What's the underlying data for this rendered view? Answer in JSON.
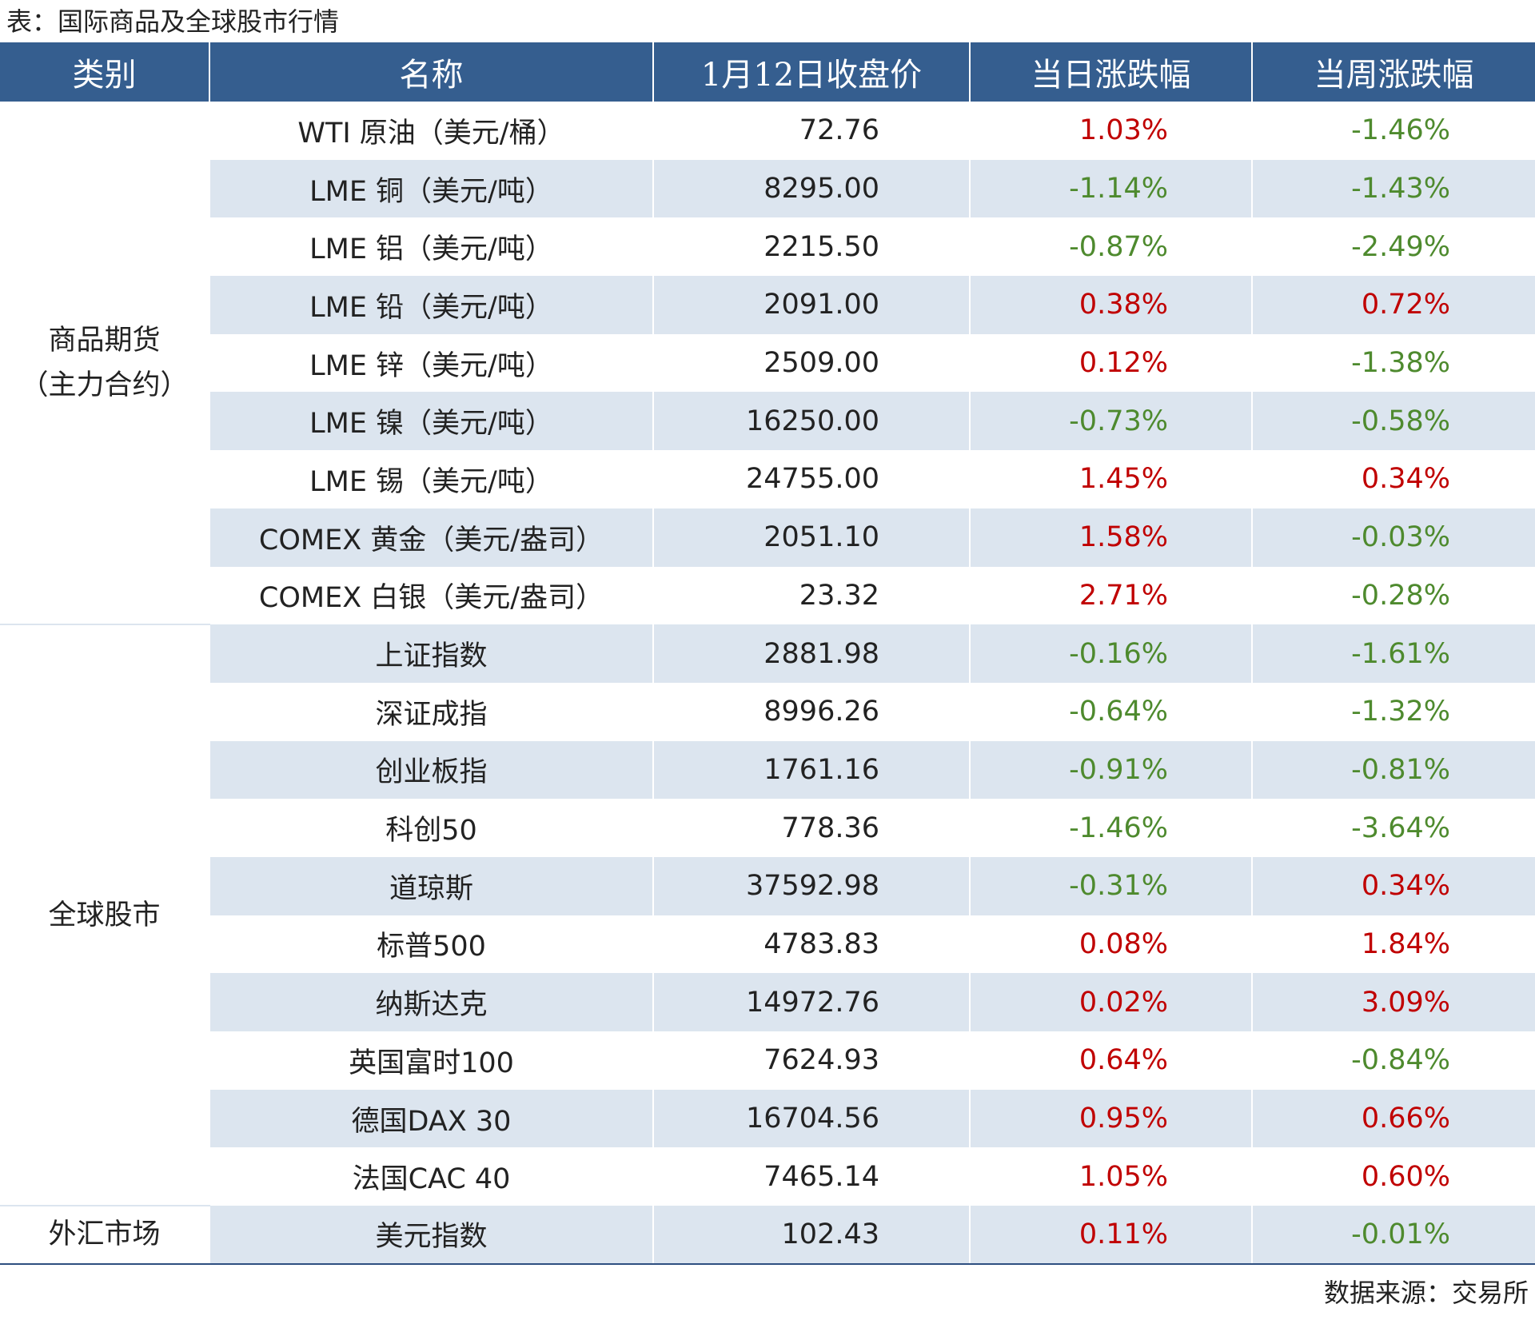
{
  "title": "表：国际商品及全球股市行情",
  "headers": [
    "类别",
    "名称",
    "1月12日收盘价",
    "当日涨跌幅",
    "当周涨跌幅"
  ],
  "categories": {
    "commodity_line1": "商品期货",
    "commodity_line2": "（主力合约）",
    "stocks": "全球股市",
    "fx": "外汇市场"
  },
  "rows": [
    {
      "name": "WTI 原油（美元/桶）",
      "price": "72.76",
      "day": "1.03%",
      "week": "-1.46%"
    },
    {
      "name": "LME 铜（美元/吨）",
      "price": "8295.00",
      "day": "-1.14%",
      "week": "-1.43%"
    },
    {
      "name": "LME 铝（美元/吨）",
      "price": "2215.50",
      "day": "-0.87%",
      "week": "-2.49%"
    },
    {
      "name": "LME 铅（美元/吨）",
      "price": "2091.00",
      "day": "0.38%",
      "week": "0.72%"
    },
    {
      "name": "LME 锌（美元/吨）",
      "price": "2509.00",
      "day": "0.12%",
      "week": "-1.38%"
    },
    {
      "name": "LME 镍（美元/吨）",
      "price": "16250.00",
      "day": "-0.73%",
      "week": "-0.58%"
    },
    {
      "name": "LME 锡（美元/吨）",
      "price": "24755.00",
      "day": "1.45%",
      "week": "0.34%"
    },
    {
      "name": "COMEX 黄金（美元/盎司）",
      "price": "2051.10",
      "day": "1.58%",
      "week": "-0.03%"
    },
    {
      "name": "COMEX 白银（美元/盎司）",
      "price": "23.32",
      "day": "2.71%",
      "week": "-0.28%"
    },
    {
      "name": "上证指数",
      "price": "2881.98",
      "day": "-0.16%",
      "week": "-1.61%"
    },
    {
      "name": "深证成指",
      "price": "8996.26",
      "day": "-0.64%",
      "week": "-1.32%"
    },
    {
      "name": "创业板指",
      "price": "1761.16",
      "day": "-0.91%",
      "week": "-0.81%"
    },
    {
      "name": "科创50",
      "price": "778.36",
      "day": "-1.46%",
      "week": "-3.64%"
    },
    {
      "name": "道琼斯",
      "price": "37592.98",
      "day": "-0.31%",
      "week": "0.34%"
    },
    {
      "name": "标普500",
      "price": "4783.83",
      "day": "0.08%",
      "week": "1.84%"
    },
    {
      "name": "纳斯达克",
      "price": "14972.76",
      "day": "0.02%",
      "week": "3.09%"
    },
    {
      "name": "英国富时100",
      "price": "7624.93",
      "day": "0.64%",
      "week": "-0.84%"
    },
    {
      "name": "德国DAX 30",
      "price": "16704.56",
      "day": "0.95%",
      "week": "0.66%"
    },
    {
      "name": "法国CAC 40",
      "price": "7465.14",
      "day": "1.05%",
      "week": "0.60%"
    },
    {
      "name": "美元指数",
      "price": "102.43",
      "day": "0.11%",
      "week": "-0.01%"
    }
  ],
  "colors": {
    "header_bg": "#355e8f",
    "alt_row": "#dce5ef",
    "up": "#c00000",
    "down": "#4e8a2e"
  },
  "source": "数据来源：交易所"
}
